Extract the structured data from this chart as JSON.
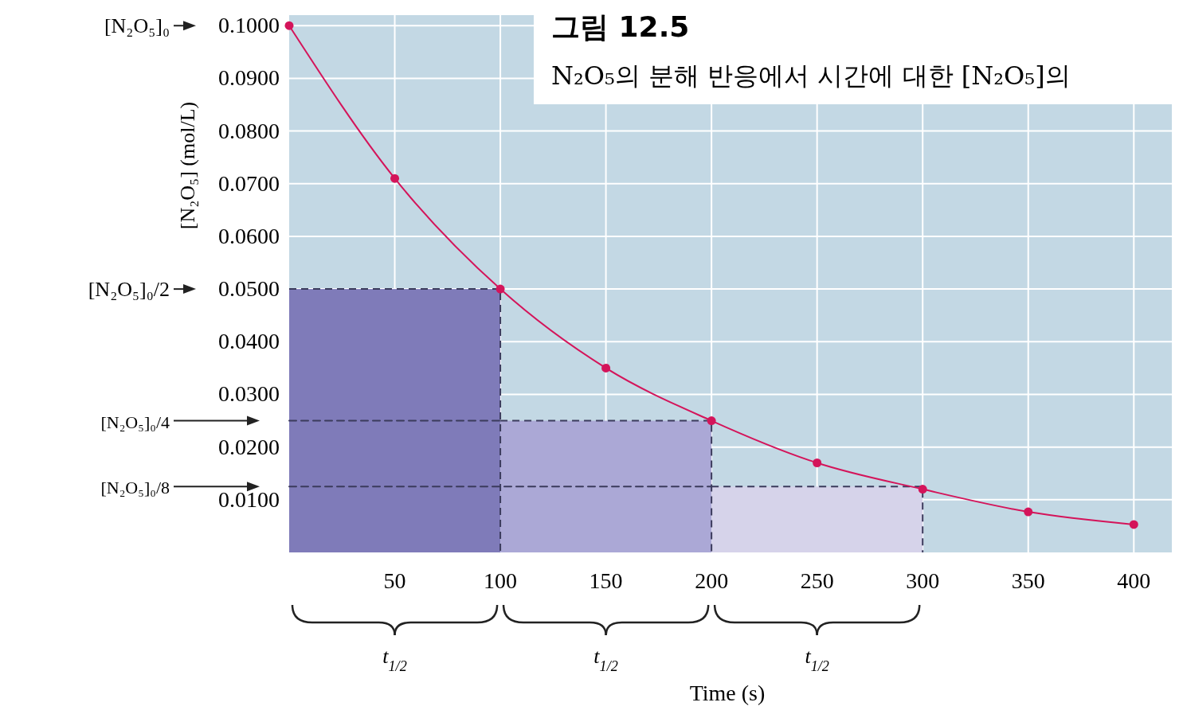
{
  "chart_data": {
    "type": "line",
    "title": "그림 12.5",
    "subtitle": "N₂O₅의 분해 반응에서 시간에 대한 [N₂O₅]의",
    "xlabel": "Time (s)",
    "ylabel": "[N₂O₅] (mol/L)",
    "xlim": [
      0,
      418
    ],
    "ylim": [
      0,
      0.102
    ],
    "xticks": [
      50,
      100,
      150,
      200,
      250,
      300,
      350,
      400
    ],
    "yticks": [
      {
        "value": 0.01,
        "label": "0.0100"
      },
      {
        "value": 0.02,
        "label": "0.0200"
      },
      {
        "value": 0.03,
        "label": "0.0300"
      },
      {
        "value": 0.04,
        "label": "0.0400"
      },
      {
        "value": 0.05,
        "label": "0.0500"
      },
      {
        "value": 0.06,
        "label": "0.0600"
      },
      {
        "value": 0.07,
        "label": "0.0700"
      },
      {
        "value": 0.08,
        "label": "0.0800"
      },
      {
        "value": 0.09,
        "label": "0.0900"
      },
      {
        "value": 0.1,
        "label": "0.1000"
      }
    ],
    "grid": true,
    "marker": "circle",
    "line_style": "solid",
    "series": [
      {
        "type": "bar",
        "x": [
          50,
          150,
          250
        ],
        "values": [
          0.05,
          0.025,
          0.0125
        ],
        "colors": [
          "#7f7bb9",
          "#aba8d6",
          "#d6d3ea"
        ],
        "line_style": "dashed"
      },
      {
        "color": "#3b3b5c",
        "x": [
          0,
          100
        ],
        "values": [
          0.025,
          0.025
        ],
        "line_style": "dashed",
        "marker": "none"
      },
      {
        "color": "#3b3b5c",
        "x": [
          0,
          200
        ],
        "values": [
          0.0125,
          0.0125
        ],
        "line_style": "dashed",
        "marker": "none"
      },
      {
        "color": "#d4145a",
        "x": [
          0,
          50,
          100,
          150,
          200,
          250,
          300,
          350,
          400
        ],
        "values": [
          0.1,
          0.071,
          0.05,
          0.035,
          0.025,
          0.017,
          0.012,
          0.0077,
          0.0053
        ]
      }
    ],
    "annotations": [
      "[N₂O₅]₀",
      "[N₂O₅]₀/2",
      "[N₂O₅]₀/4",
      "[N₂O₅]₀/8",
      "t$_{1/2}$",
      "t$_{1/2}$",
      "t$_{1/2}$"
    ]
  }
}
